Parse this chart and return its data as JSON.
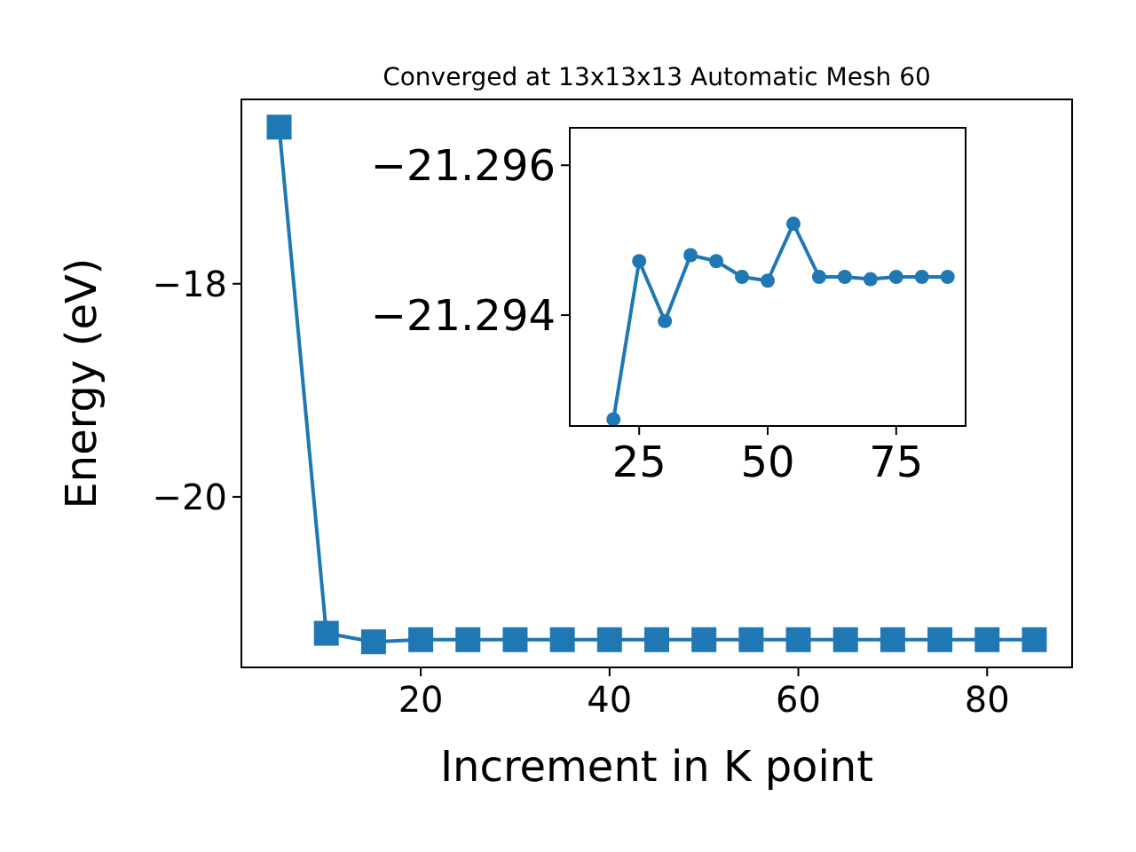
{
  "chart_data": [
    {
      "type": "line",
      "title": "Converged at 13x13x13 Automatic Mesh 60",
      "xlabel": "Increment in K point",
      "ylabel": "Energy (eV)",
      "x": [
        5,
        10,
        15,
        20,
        25,
        30,
        35,
        40,
        45,
        50,
        55,
        60,
        65,
        70,
        75,
        80,
        85
      ],
      "series": [
        {
          "color": "#1f77b4",
          "values": [
            -16.53,
            -21.28,
            -21.36,
            -21.34,
            -21.34,
            -21.34,
            -21.34,
            -21.34,
            -21.34,
            -21.34,
            -21.34,
            -21.34,
            -21.34,
            -21.34,
            -21.34,
            -21.34,
            -21.34
          ]
        }
      ],
      "xlim": [
        1,
        89
      ],
      "ylim": [
        -21.6,
        -16.27
      ],
      "xticks": [
        20,
        40,
        60,
        80
      ],
      "yticks": [
        {
          "value": -20,
          "label": "−20"
        },
        {
          "value": -18,
          "label": "−18"
        }
      ],
      "marker": "square"
    },
    {
      "type": "line",
      "x": [
        20,
        25,
        30,
        35,
        40,
        45,
        50,
        55,
        60,
        65,
        70,
        75,
        80,
        85
      ],
      "series": [
        {
          "color": "#1f77b4",
          "values": [
            -21.29261,
            -21.29472,
            -21.29392,
            -21.2948,
            -21.29472,
            -21.29451,
            -21.29446,
            -21.29522,
            -21.29451,
            -21.29451,
            -21.29448,
            -21.29451,
            -21.29451,
            -21.29451
          ]
        }
      ],
      "xlim": [
        11.5,
        88.5
      ],
      "ylim": [
        -21.29252,
        -21.2965
      ],
      "xticks": [
        25,
        50,
        75
      ],
      "yticks": [
        {
          "value": -21.296,
          "label": "−21.296"
        },
        {
          "value": -21.294,
          "label": "−21.294"
        }
      ],
      "marker": "circle"
    }
  ]
}
